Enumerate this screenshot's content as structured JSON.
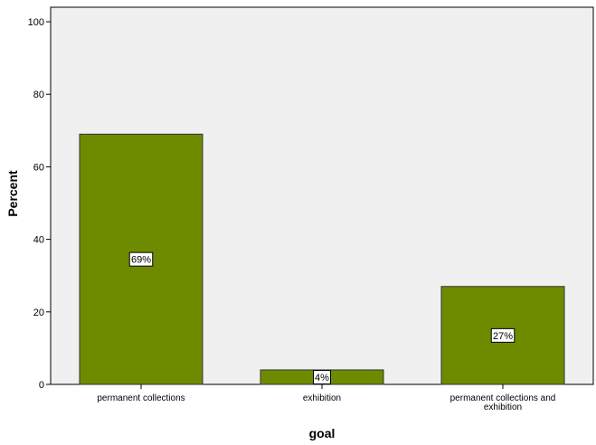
{
  "chart_data": {
    "type": "bar",
    "categories": [
      "permanent collections",
      "exhibition",
      "permanent collections and exhibition"
    ],
    "category_lines": [
      [
        "permanent collections"
      ],
      [
        "exhibition"
      ],
      [
        "permanent collections and",
        "exhibition"
      ]
    ],
    "values": [
      69,
      4,
      27
    ],
    "data_labels": [
      "69%",
      "4%",
      "27%"
    ],
    "title": "",
    "xlabel": "goal",
    "ylabel": "Percent",
    "ylim": [
      0,
      104
    ],
    "yticks": [
      0,
      20,
      40,
      60,
      80,
      100
    ],
    "grid": false,
    "legend": "none",
    "colors": {
      "bar_fill": "#6e8b00",
      "bar_stroke": "#333333",
      "plot_background": "#f0f0f0",
      "label_box": "#ffffff"
    }
  }
}
